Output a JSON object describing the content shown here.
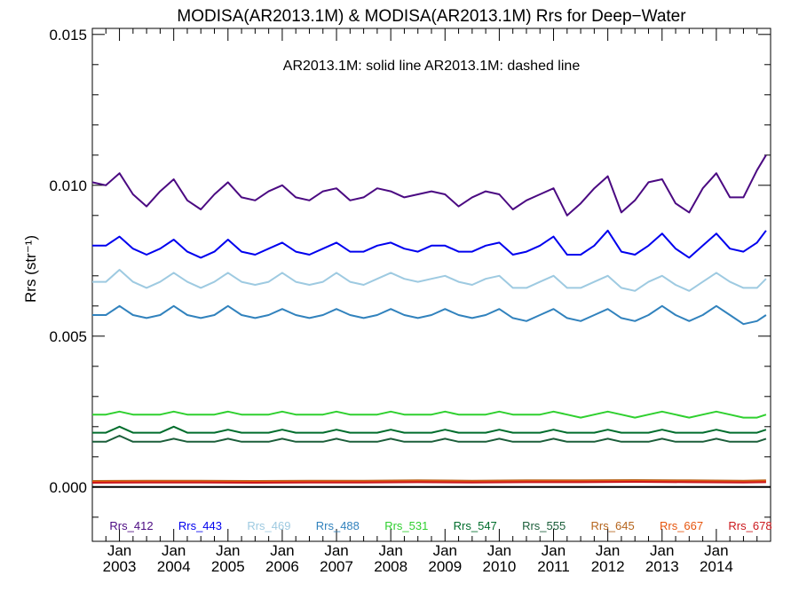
{
  "chart_data": {
    "type": "line",
    "title": "MODISA(AR2013.1M) & MODISA(AR2013.1M)  Rrs for Deep−Water",
    "subtitle": "AR2013.1M: solid line   AR2013.1M: dashed line",
    "ylabel": "Rrs (str⁻¹)",
    "xlabel": "",
    "ylim": [
      -0.0018,
      0.0152
    ],
    "xlim": [
      "2002-07-01",
      "2015-01-01"
    ],
    "y_ticks": [
      "0.000",
      "0.005",
      "0.010",
      "0.015"
    ],
    "x_ticks": [
      {
        "month": "Jan",
        "year": "2003"
      },
      {
        "month": "Jan",
        "year": "2004"
      },
      {
        "month": "Jan",
        "year": "2005"
      },
      {
        "month": "Jan",
        "year": "2006"
      },
      {
        "month": "Jan",
        "year": "2007"
      },
      {
        "month": "Jan",
        "year": "2008"
      },
      {
        "month": "Jan",
        "year": "2009"
      },
      {
        "month": "Jan",
        "year": "2010"
      },
      {
        "month": "Jan",
        "year": "2011"
      },
      {
        "month": "Jan",
        "year": "2012"
      },
      {
        "month": "Jan",
        "year": "2013"
      },
      {
        "month": "Jan",
        "year": "2014"
      }
    ],
    "reference_line": 0.0,
    "grid": false,
    "legend_position": "bottom",
    "series": [
      {
        "name": "Rrs_412",
        "color": "#4b0a82",
        "x": [
          "2002-07",
          "2002-10",
          "2003-01",
          "2003-04",
          "2003-07",
          "2003-10",
          "2004-01",
          "2004-04",
          "2004-07",
          "2004-10",
          "2005-01",
          "2005-04",
          "2005-07",
          "2005-10",
          "2006-01",
          "2006-04",
          "2006-07",
          "2006-10",
          "2007-01",
          "2007-04",
          "2007-07",
          "2007-10",
          "2008-01",
          "2008-04",
          "2008-07",
          "2008-10",
          "2009-01",
          "2009-04",
          "2009-07",
          "2009-10",
          "2010-01",
          "2010-04",
          "2010-07",
          "2010-10",
          "2011-01",
          "2011-04",
          "2011-07",
          "2011-10",
          "2012-01",
          "2012-04",
          "2012-07",
          "2012-10",
          "2013-01",
          "2013-04",
          "2013-07",
          "2013-10",
          "2014-01",
          "2014-04",
          "2014-07",
          "2014-10",
          "2014-12"
        ],
        "values": [
          0.0101,
          0.01,
          0.0104,
          0.0097,
          0.0093,
          0.0098,
          0.0102,
          0.0095,
          0.0092,
          0.0097,
          0.0101,
          0.0096,
          0.0095,
          0.0098,
          0.01,
          0.0096,
          0.0095,
          0.0098,
          0.0099,
          0.0095,
          0.0096,
          0.0099,
          0.0098,
          0.0096,
          0.0097,
          0.0098,
          0.0097,
          0.0093,
          0.0096,
          0.0098,
          0.0097,
          0.0092,
          0.0095,
          0.0097,
          0.0099,
          0.009,
          0.0094,
          0.0099,
          0.0103,
          0.0091,
          0.0095,
          0.0101,
          0.0102,
          0.0094,
          0.0091,
          0.0099,
          0.0104,
          0.0096,
          0.0096,
          0.0105,
          0.011
        ]
      },
      {
        "name": "Rrs_443",
        "color": "#0000ee",
        "x": [
          "2002-07",
          "2002-10",
          "2003-01",
          "2003-04",
          "2003-07",
          "2003-10",
          "2004-01",
          "2004-04",
          "2004-07",
          "2004-10",
          "2005-01",
          "2005-04",
          "2005-07",
          "2005-10",
          "2006-01",
          "2006-04",
          "2006-07",
          "2006-10",
          "2007-01",
          "2007-04",
          "2007-07",
          "2007-10",
          "2008-01",
          "2008-04",
          "2008-07",
          "2008-10",
          "2009-01",
          "2009-04",
          "2009-07",
          "2009-10",
          "2010-01",
          "2010-04",
          "2010-07",
          "2010-10",
          "2011-01",
          "2011-04",
          "2011-07",
          "2011-10",
          "2012-01",
          "2012-04",
          "2012-07",
          "2012-10",
          "2013-01",
          "2013-04",
          "2013-07",
          "2013-10",
          "2014-01",
          "2014-04",
          "2014-07",
          "2014-10",
          "2014-12"
        ],
        "values": [
          0.008,
          0.008,
          0.0083,
          0.0079,
          0.0077,
          0.0079,
          0.0082,
          0.0078,
          0.0076,
          0.0078,
          0.0082,
          0.0078,
          0.0077,
          0.0079,
          0.0081,
          0.0078,
          0.0077,
          0.0079,
          0.0081,
          0.0078,
          0.0078,
          0.008,
          0.0081,
          0.0079,
          0.0078,
          0.008,
          0.008,
          0.0078,
          0.0078,
          0.008,
          0.0081,
          0.0077,
          0.0078,
          0.008,
          0.0083,
          0.0077,
          0.0077,
          0.008,
          0.0085,
          0.0078,
          0.0077,
          0.008,
          0.0084,
          0.0079,
          0.0076,
          0.008,
          0.0084,
          0.0079,
          0.0078,
          0.0081,
          0.0085
        ]
      },
      {
        "name": "Rrs_469",
        "color": "#9ecae1",
        "x": [
          "2002-07",
          "2002-10",
          "2003-01",
          "2003-04",
          "2003-07",
          "2003-10",
          "2004-01",
          "2004-04",
          "2004-07",
          "2004-10",
          "2005-01",
          "2005-04",
          "2005-07",
          "2005-10",
          "2006-01",
          "2006-04",
          "2006-07",
          "2006-10",
          "2007-01",
          "2007-04",
          "2007-07",
          "2007-10",
          "2008-01",
          "2008-04",
          "2008-07",
          "2008-10",
          "2009-01",
          "2009-04",
          "2009-07",
          "2009-10",
          "2010-01",
          "2010-04",
          "2010-07",
          "2010-10",
          "2011-01",
          "2011-04",
          "2011-07",
          "2011-10",
          "2012-01",
          "2012-04",
          "2012-07",
          "2012-10",
          "2013-01",
          "2013-04",
          "2013-07",
          "2013-10",
          "2014-01",
          "2014-04",
          "2014-07",
          "2014-10",
          "2014-12"
        ],
        "values": [
          0.0068,
          0.0068,
          0.0072,
          0.0068,
          0.0066,
          0.0068,
          0.0071,
          0.0068,
          0.0066,
          0.0068,
          0.0071,
          0.0068,
          0.0067,
          0.0068,
          0.0071,
          0.0068,
          0.0067,
          0.0068,
          0.0071,
          0.0068,
          0.0067,
          0.0069,
          0.0071,
          0.0069,
          0.0068,
          0.0069,
          0.007,
          0.0068,
          0.0067,
          0.0069,
          0.007,
          0.0066,
          0.0066,
          0.0068,
          0.007,
          0.0066,
          0.0066,
          0.0068,
          0.007,
          0.0066,
          0.0065,
          0.0068,
          0.007,
          0.0067,
          0.0065,
          0.0068,
          0.0071,
          0.0068,
          0.0066,
          0.0066,
          0.0069
        ]
      },
      {
        "name": "Rrs_488",
        "color": "#3182bd",
        "x": [
          "2002-07",
          "2002-10",
          "2003-01",
          "2003-04",
          "2003-07",
          "2003-10",
          "2004-01",
          "2004-04",
          "2004-07",
          "2004-10",
          "2005-01",
          "2005-04",
          "2005-07",
          "2005-10",
          "2006-01",
          "2006-04",
          "2006-07",
          "2006-10",
          "2007-01",
          "2007-04",
          "2007-07",
          "2007-10",
          "2008-01",
          "2008-04",
          "2008-07",
          "2008-10",
          "2009-01",
          "2009-04",
          "2009-07",
          "2009-10",
          "2010-01",
          "2010-04",
          "2010-07",
          "2010-10",
          "2011-01",
          "2011-04",
          "2011-07",
          "2011-10",
          "2012-01",
          "2012-04",
          "2012-07",
          "2012-10",
          "2013-01",
          "2013-04",
          "2013-07",
          "2013-10",
          "2014-01",
          "2014-04",
          "2014-07",
          "2014-10",
          "2014-12"
        ],
        "values": [
          0.0057,
          0.0057,
          0.006,
          0.0057,
          0.0056,
          0.0057,
          0.006,
          0.0057,
          0.0056,
          0.0057,
          0.006,
          0.0057,
          0.0056,
          0.0057,
          0.0059,
          0.0057,
          0.0056,
          0.0057,
          0.0059,
          0.0057,
          0.0056,
          0.0057,
          0.0059,
          0.0057,
          0.0056,
          0.0057,
          0.0059,
          0.0057,
          0.0056,
          0.0057,
          0.0059,
          0.0056,
          0.0055,
          0.0057,
          0.0059,
          0.0056,
          0.0055,
          0.0057,
          0.0059,
          0.0056,
          0.0055,
          0.0057,
          0.006,
          0.0057,
          0.0055,
          0.0057,
          0.006,
          0.0057,
          0.0054,
          0.0055,
          0.0057
        ]
      },
      {
        "name": "Rrs_531",
        "color": "#2fd02f",
        "x": [
          "2002-07",
          "2002-10",
          "2003-01",
          "2003-04",
          "2003-07",
          "2003-10",
          "2004-01",
          "2004-04",
          "2004-07",
          "2004-10",
          "2005-01",
          "2005-04",
          "2005-07",
          "2005-10",
          "2006-01",
          "2006-04",
          "2006-07",
          "2006-10",
          "2007-01",
          "2007-04",
          "2007-07",
          "2007-10",
          "2008-01",
          "2008-04",
          "2008-07",
          "2008-10",
          "2009-01",
          "2009-04",
          "2009-07",
          "2009-10",
          "2010-01",
          "2010-04",
          "2010-07",
          "2010-10",
          "2011-01",
          "2011-04",
          "2011-07",
          "2011-10",
          "2012-01",
          "2012-04",
          "2012-07",
          "2012-10",
          "2013-01",
          "2013-04",
          "2013-07",
          "2013-10",
          "2014-01",
          "2014-04",
          "2014-07",
          "2014-10",
          "2014-12"
        ],
        "values": [
          0.0024,
          0.0024,
          0.0025,
          0.0024,
          0.0024,
          0.0024,
          0.0025,
          0.0024,
          0.0024,
          0.0024,
          0.0025,
          0.0024,
          0.0024,
          0.0024,
          0.0025,
          0.0024,
          0.0024,
          0.0024,
          0.0025,
          0.0024,
          0.0024,
          0.0024,
          0.0025,
          0.0024,
          0.0024,
          0.0024,
          0.0025,
          0.0024,
          0.0024,
          0.0024,
          0.0025,
          0.0024,
          0.0024,
          0.0024,
          0.0025,
          0.0024,
          0.0023,
          0.0024,
          0.0025,
          0.0024,
          0.0023,
          0.0024,
          0.0025,
          0.0024,
          0.0023,
          0.0024,
          0.0025,
          0.0024,
          0.0023,
          0.0023,
          0.0024
        ]
      },
      {
        "name": "Rrs_547",
        "color": "#006d2c",
        "x": [
          "2002-07",
          "2002-10",
          "2003-01",
          "2003-04",
          "2003-07",
          "2003-10",
          "2004-01",
          "2004-04",
          "2004-07",
          "2004-10",
          "2005-01",
          "2005-04",
          "2005-07",
          "2005-10",
          "2006-01",
          "2006-04",
          "2006-07",
          "2006-10",
          "2007-01",
          "2007-04",
          "2007-07",
          "2007-10",
          "2008-01",
          "2008-04",
          "2008-07",
          "2008-10",
          "2009-01",
          "2009-04",
          "2009-07",
          "2009-10",
          "2010-01",
          "2010-04",
          "2010-07",
          "2010-10",
          "2011-01",
          "2011-04",
          "2011-07",
          "2011-10",
          "2012-01",
          "2012-04",
          "2012-07",
          "2012-10",
          "2013-01",
          "2013-04",
          "2013-07",
          "2013-10",
          "2014-01",
          "2014-04",
          "2014-07",
          "2014-10",
          "2014-12"
        ],
        "values": [
          0.0018,
          0.0018,
          0.002,
          0.0018,
          0.0018,
          0.0018,
          0.002,
          0.0018,
          0.0018,
          0.0018,
          0.0019,
          0.0018,
          0.0018,
          0.0018,
          0.0019,
          0.0018,
          0.0018,
          0.0018,
          0.0019,
          0.0018,
          0.0018,
          0.0018,
          0.0019,
          0.0018,
          0.0018,
          0.0018,
          0.0019,
          0.0018,
          0.0018,
          0.0018,
          0.0019,
          0.0018,
          0.0018,
          0.0018,
          0.0019,
          0.0018,
          0.0018,
          0.0018,
          0.0019,
          0.0018,
          0.0018,
          0.0018,
          0.0019,
          0.0018,
          0.0018,
          0.0018,
          0.0019,
          0.0018,
          0.0018,
          0.0018,
          0.0019
        ]
      },
      {
        "name": "Rrs_555",
        "color": "#1b5e3a",
        "x": [
          "2002-07",
          "2002-10",
          "2003-01",
          "2003-04",
          "2003-07",
          "2003-10",
          "2004-01",
          "2004-04",
          "2004-07",
          "2004-10",
          "2005-01",
          "2005-04",
          "2005-07",
          "2005-10",
          "2006-01",
          "2006-04",
          "2006-07",
          "2006-10",
          "2007-01",
          "2007-04",
          "2007-07",
          "2007-10",
          "2008-01",
          "2008-04",
          "2008-07",
          "2008-10",
          "2009-01",
          "2009-04",
          "2009-07",
          "2009-10",
          "2010-01",
          "2010-04",
          "2010-07",
          "2010-10",
          "2011-01",
          "2011-04",
          "2011-07",
          "2011-10",
          "2012-01",
          "2012-04",
          "2012-07",
          "2012-10",
          "2013-01",
          "2013-04",
          "2013-07",
          "2013-10",
          "2014-01",
          "2014-04",
          "2014-07",
          "2014-10",
          "2014-12"
        ],
        "values": [
          0.0015,
          0.0015,
          0.0017,
          0.0015,
          0.0015,
          0.0015,
          0.0016,
          0.0015,
          0.0015,
          0.0015,
          0.0016,
          0.0015,
          0.0015,
          0.0015,
          0.0016,
          0.0015,
          0.0015,
          0.0015,
          0.0016,
          0.0015,
          0.0015,
          0.0015,
          0.0016,
          0.0015,
          0.0015,
          0.0015,
          0.0016,
          0.0015,
          0.0015,
          0.0015,
          0.0016,
          0.0015,
          0.0015,
          0.0015,
          0.0016,
          0.0015,
          0.0015,
          0.0015,
          0.0016,
          0.0015,
          0.0015,
          0.0015,
          0.0016,
          0.0015,
          0.0015,
          0.0015,
          0.0016,
          0.0015,
          0.0015,
          0.0015,
          0.0016
        ]
      },
      {
        "name": "Rrs_645",
        "color": "#b5651d",
        "x": [
          "2002-07",
          "2003-07",
          "2004-07",
          "2005-07",
          "2006-07",
          "2007-07",
          "2008-07",
          "2009-07",
          "2010-07",
          "2011-07",
          "2012-07",
          "2013-07",
          "2014-07",
          "2014-12"
        ],
        "values": [
          0.0002,
          0.00021,
          0.00021,
          0.0002,
          0.00021,
          0.00021,
          0.00022,
          0.00021,
          0.00022,
          0.00022,
          0.00023,
          0.00022,
          0.00021,
          0.00022
        ]
      },
      {
        "name": "Rrs_667",
        "color": "#e6550d",
        "x": [
          "2002-07",
          "2003-07",
          "2004-07",
          "2005-07",
          "2006-07",
          "2007-07",
          "2008-07",
          "2009-07",
          "2010-07",
          "2011-07",
          "2012-07",
          "2013-07",
          "2014-07",
          "2014-12"
        ],
        "values": [
          0.00017,
          0.00018,
          0.00018,
          0.00017,
          0.00018,
          0.00018,
          0.00019,
          0.00018,
          0.00019,
          0.00019,
          0.0002,
          0.00019,
          0.00018,
          0.00019
        ]
      },
      {
        "name": "Rrs_678",
        "color": "#cb181d",
        "x": [
          "2002-07",
          "2003-07",
          "2004-07",
          "2005-07",
          "2006-07",
          "2007-07",
          "2008-07",
          "2009-07",
          "2010-07",
          "2011-07",
          "2012-07",
          "2013-07",
          "2014-07",
          "2014-12"
        ],
        "values": [
          0.00014,
          0.00015,
          0.00015,
          0.00014,
          0.00015,
          0.00015,
          0.00016,
          0.00015,
          0.00016,
          0.00016,
          0.00017,
          0.00016,
          0.00015,
          0.00016
        ]
      }
    ]
  }
}
